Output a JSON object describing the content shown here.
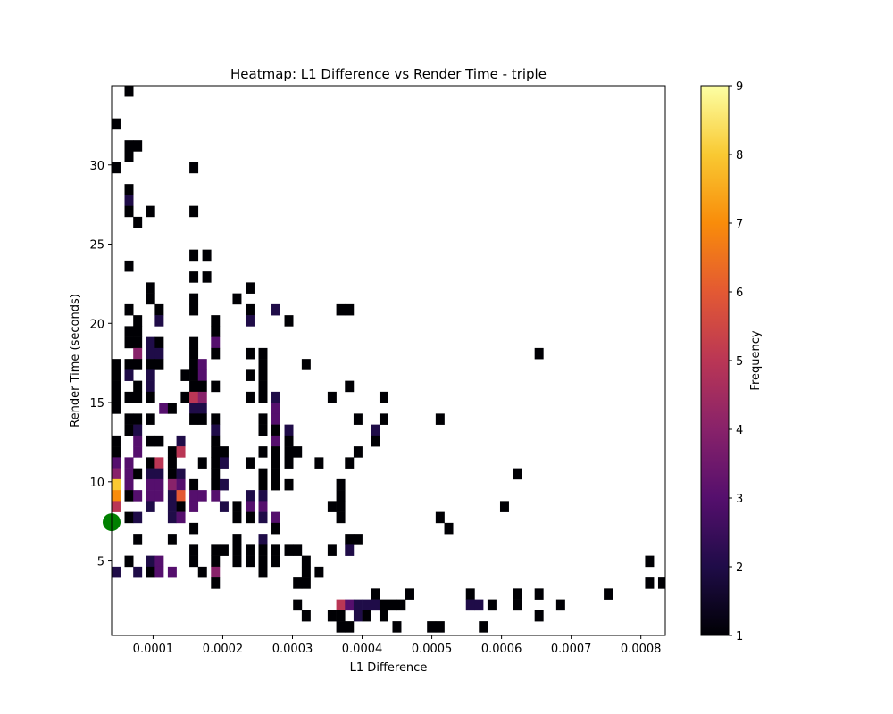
{
  "chart_data": {
    "type": "heatmap",
    "title": "Heatmap: L1 Difference vs Render Time - triple",
    "xlabel": "L1 Difference",
    "ylabel": "Render Time (seconds)",
    "colorbar_label": "Frequency",
    "colormap": "inferno",
    "xlim": [
      4.05e-05,
      0.000835
    ],
    "ylim": [
      0.3,
      35.0
    ],
    "x_bin_width": 1.24e-05,
    "y_bin_width": 0.69,
    "x_ticks": [
      0.0001,
      0.0002,
      0.0003,
      0.0004,
      0.0005,
      0.0006,
      0.0007,
      0.0008
    ],
    "x_tick_labels": [
      "0.0001",
      "0.0002",
      "0.0003",
      "0.0004",
      "0.0005",
      "0.0006",
      "0.0007",
      "0.0008"
    ],
    "y_ticks": [
      5,
      10,
      15,
      20,
      25,
      30
    ],
    "y_tick_labels": [
      "5",
      "10",
      "15",
      "20",
      "25",
      "30"
    ],
    "color_range": [
      1,
      9
    ],
    "colorbar_ticks": [
      1,
      2,
      3,
      4,
      5,
      6,
      7,
      8,
      9
    ],
    "colorbar_tick_labels": [
      "1",
      "2",
      "3",
      "4",
      "5",
      "6",
      "7",
      "8",
      "9"
    ],
    "grid": false,
    "cell_note": "each cell = [x_bin_center, y_bin_center, count]",
    "cells": [
      [
        6.53e-05,
        34.66,
        1
      ],
      [
        4.67e-05,
        32.59,
        1
      ],
      [
        6.53e-05,
        31.21,
        1
      ],
      [
        7.77e-05,
        31.21,
        1
      ],
      [
        6.53e-05,
        30.52,
        1
      ],
      [
        4.67e-05,
        29.83,
        1
      ],
      [
        0.0001583,
        29.83,
        1
      ],
      [
        6.53e-05,
        28.45,
        1
      ],
      [
        6.53e-05,
        27.76,
        2
      ],
      [
        6.53e-05,
        27.07,
        1
      ],
      [
        9.63e-05,
        27.07,
        1
      ],
      [
        0.0001583,
        27.07,
        1
      ],
      [
        7.77e-05,
        26.38,
        1
      ],
      [
        0.0001583,
        24.31,
        1
      ],
      [
        0.0001769,
        24.31,
        1
      ],
      [
        6.53e-05,
        23.62,
        1
      ],
      [
        0.0001583,
        22.93,
        1
      ],
      [
        0.0001769,
        22.93,
        1
      ],
      [
        9.63e-05,
        22.24,
        1
      ],
      [
        0.0002389,
        22.24,
        1
      ],
      [
        9.63e-05,
        21.55,
        1
      ],
      [
        0.0001583,
        21.55,
        1
      ],
      [
        0.0002203,
        21.55,
        1
      ],
      [
        6.53e-05,
        20.86,
        1
      ],
      [
        0.0001087,
        20.86,
        1
      ],
      [
        0.0001583,
        20.86,
        1
      ],
      [
        0.0002389,
        20.86,
        1
      ],
      [
        0.0002761,
        20.86,
        2
      ],
      [
        0.0003691,
        20.86,
        1
      ],
      [
        0.0003815,
        20.86,
        1
      ],
      [
        7.77e-05,
        20.17,
        1
      ],
      [
        0.0001087,
        20.17,
        2
      ],
      [
        0.0001893,
        20.17,
        1
      ],
      [
        0.0002389,
        20.17,
        2
      ],
      [
        0.0002947,
        20.17,
        1
      ],
      [
        6.53e-05,
        19.48,
        1
      ],
      [
        7.77e-05,
        19.48,
        1
      ],
      [
        0.0001893,
        19.48,
        1
      ],
      [
        6.53e-05,
        18.79,
        1
      ],
      [
        7.77e-05,
        18.79,
        1
      ],
      [
        9.63e-05,
        18.79,
        2
      ],
      [
        0.0001087,
        18.79,
        1
      ],
      [
        0.0001583,
        18.79,
        1
      ],
      [
        0.0001893,
        18.79,
        3
      ],
      [
        7.77e-05,
        18.1,
        4
      ],
      [
        9.63e-05,
        18.1,
        2
      ],
      [
        0.0001087,
        18.1,
        2
      ],
      [
        0.0001583,
        18.1,
        1
      ],
      [
        0.0001893,
        18.1,
        1
      ],
      [
        0.0002389,
        18.1,
        1
      ],
      [
        0.0002575,
        18.1,
        1
      ],
      [
        0.0006537,
        18.1,
        1
      ],
      [
        4.67e-05,
        17.41,
        1
      ],
      [
        6.53e-05,
        17.41,
        1
      ],
      [
        7.77e-05,
        17.41,
        1
      ],
      [
        9.63e-05,
        17.41,
        1
      ],
      [
        0.0001087,
        17.41,
        1
      ],
      [
        0.0001583,
        17.41,
        1
      ],
      [
        0.0001707,
        17.41,
        3
      ],
      [
        0.0002575,
        17.41,
        1
      ],
      [
        0.0003195,
        17.41,
        1
      ],
      [
        4.67e-05,
        16.72,
        1
      ],
      [
        6.53e-05,
        16.72,
        2
      ],
      [
        9.63e-05,
        16.72,
        2
      ],
      [
        0.0001459,
        16.72,
        1
      ],
      [
        0.0001583,
        16.72,
        1
      ],
      [
        0.0001707,
        16.72,
        3
      ],
      [
        0.0002389,
        16.72,
        1
      ],
      [
        0.0002575,
        16.72,
        1
      ],
      [
        4.67e-05,
        16.03,
        1
      ],
      [
        7.77e-05,
        16.03,
        1
      ],
      [
        9.63e-05,
        16.03,
        2
      ],
      [
        0.0001583,
        16.03,
        1
      ],
      [
        0.0001707,
        16.03,
        1
      ],
      [
        0.0001893,
        16.03,
        1
      ],
      [
        0.0002575,
        16.03,
        1
      ],
      [
        0.0003815,
        16.03,
        1
      ],
      [
        4.67e-05,
        15.34,
        1
      ],
      [
        6.53e-05,
        15.34,
        1
      ],
      [
        7.77e-05,
        15.34,
        1
      ],
      [
        9.63e-05,
        15.34,
        1
      ],
      [
        0.0001459,
        15.34,
        1
      ],
      [
        0.0001583,
        15.34,
        5
      ],
      [
        0.0001707,
        15.34,
        4
      ],
      [
        0.0002389,
        15.34,
        1
      ],
      [
        0.0002575,
        15.34,
        1
      ],
      [
        0.0002761,
        15.34,
        2
      ],
      [
        0.0003567,
        15.34,
        1
      ],
      [
        0.0004311,
        15.34,
        1
      ],
      [
        4.67e-05,
        14.65,
        1
      ],
      [
        0.0001149,
        14.65,
        3
      ],
      [
        0.0001273,
        14.65,
        1
      ],
      [
        0.0001583,
        14.65,
        2
      ],
      [
        0.0001707,
        14.65,
        2
      ],
      [
        0.0002761,
        14.65,
        3
      ],
      [
        6.53e-05,
        13.96,
        1
      ],
      [
        7.77e-05,
        13.96,
        1
      ],
      [
        9.63e-05,
        13.96,
        1
      ],
      [
        0.0001583,
        13.96,
        1
      ],
      [
        0.0001707,
        13.96,
        1
      ],
      [
        0.0001893,
        13.96,
        1
      ],
      [
        0.0002575,
        13.96,
        1
      ],
      [
        0.0002761,
        13.96,
        3
      ],
      [
        0.0003939,
        13.96,
        1
      ],
      [
        0.0004311,
        13.96,
        1
      ],
      [
        0.0005117,
        13.96,
        1
      ],
      [
        6.53e-05,
        13.27,
        1
      ],
      [
        7.77e-05,
        13.27,
        2
      ],
      [
        0.0001893,
        13.27,
        2
      ],
      [
        0.0002575,
        13.27,
        1
      ],
      [
        0.0002761,
        13.27,
        1
      ],
      [
        0.0002947,
        13.27,
        2
      ],
      [
        0.0004187,
        13.27,
        2
      ],
      [
        4.67e-05,
        12.58,
        1
      ],
      [
        7.77e-05,
        12.58,
        3
      ],
      [
        9.63e-05,
        12.58,
        1
      ],
      [
        0.0001087,
        12.58,
        1
      ],
      [
        0.0001397,
        12.58,
        2
      ],
      [
        0.0001893,
        12.58,
        1
      ],
      [
        0.0002761,
        12.58,
        3
      ],
      [
        0.0002947,
        12.58,
        1
      ],
      [
        0.0004187,
        12.58,
        1
      ],
      [
        4.67e-05,
        11.89,
        1
      ],
      [
        7.77e-05,
        11.89,
        3
      ],
      [
        0.0001273,
        11.89,
        1
      ],
      [
        0.0001397,
        11.89,
        5
      ],
      [
        0.0001893,
        11.89,
        1
      ],
      [
        0.0002017,
        11.89,
        1
      ],
      [
        0.0002575,
        11.89,
        1
      ],
      [
        0.0002761,
        11.89,
        1
      ],
      [
        0.0002947,
        11.89,
        1
      ],
      [
        0.0003071,
        11.89,
        1
      ],
      [
        0.0003939,
        11.89,
        1
      ],
      [
        4.67e-05,
        11.2,
        3
      ],
      [
        6.53e-05,
        11.2,
        3
      ],
      [
        9.63e-05,
        11.2,
        1
      ],
      [
        0.0001087,
        11.2,
        5
      ],
      [
        0.0001273,
        11.2,
        1
      ],
      [
        0.0001707,
        11.2,
        1
      ],
      [
        0.0001893,
        11.2,
        1
      ],
      [
        0.0002017,
        11.2,
        2
      ],
      [
        0.0002389,
        11.2,
        1
      ],
      [
        0.0002761,
        11.2,
        1
      ],
      [
        0.0002947,
        11.2,
        1
      ],
      [
        0.0003381,
        11.2,
        1
      ],
      [
        0.0003815,
        11.2,
        1
      ],
      [
        4.67e-05,
        10.51,
        4
      ],
      [
        6.53e-05,
        10.51,
        3
      ],
      [
        7.77e-05,
        10.51,
        1
      ],
      [
        9.63e-05,
        10.51,
        2
      ],
      [
        0.0001087,
        10.51,
        2
      ],
      [
        0.0001273,
        10.51,
        1
      ],
      [
        0.0001397,
        10.51,
        2
      ],
      [
        0.0001893,
        10.51,
        1
      ],
      [
        0.0002575,
        10.51,
        1
      ],
      [
        0.0002761,
        10.51,
        1
      ],
      [
        0.0006227,
        10.51,
        1
      ],
      [
        4.67e-05,
        9.82,
        8
      ],
      [
        6.53e-05,
        9.82,
        3
      ],
      [
        9.63e-05,
        9.82,
        3
      ],
      [
        0.0001087,
        9.82,
        3
      ],
      [
        0.0001273,
        9.82,
        4
      ],
      [
        0.0001397,
        9.82,
        3
      ],
      [
        0.0001583,
        9.82,
        1
      ],
      [
        0.0001893,
        9.82,
        1
      ],
      [
        0.0002017,
        9.82,
        2
      ],
      [
        0.0002575,
        9.82,
        1
      ],
      [
        0.0002761,
        9.82,
        1
      ],
      [
        0.0002947,
        9.82,
        1
      ],
      [
        0.0003691,
        9.82,
        1
      ],
      [
        4.67e-05,
        9.13,
        7
      ],
      [
        6.53e-05,
        9.13,
        1
      ],
      [
        7.77e-05,
        9.13,
        3
      ],
      [
        9.63e-05,
        9.13,
        3
      ],
      [
        0.0001087,
        9.13,
        3
      ],
      [
        0.0001273,
        9.13,
        2
      ],
      [
        0.0001397,
        9.13,
        6
      ],
      [
        0.0001583,
        9.13,
        3
      ],
      [
        0.0001707,
        9.13,
        3
      ],
      [
        0.0001893,
        9.13,
        3
      ],
      [
        0.0002389,
        9.13,
        2
      ],
      [
        0.0002575,
        9.13,
        2
      ],
      [
        0.0003691,
        9.13,
        1
      ],
      [
        4.67e-05,
        8.44,
        5
      ],
      [
        9.63e-05,
        8.44,
        2
      ],
      [
        0.0001273,
        8.44,
        2
      ],
      [
        0.0001397,
        8.44,
        1
      ],
      [
        0.0001583,
        8.44,
        3
      ],
      [
        0.0002017,
        8.44,
        2
      ],
      [
        0.0002203,
        8.44,
        1
      ],
      [
        0.0002389,
        8.44,
        3
      ],
      [
        0.0002575,
        8.44,
        3
      ],
      [
        0.0003567,
        8.44,
        1
      ],
      [
        0.0003691,
        8.44,
        1
      ],
      [
        0.0006041,
        8.44,
        1
      ],
      [
        6.53e-05,
        7.75,
        1
      ],
      [
        7.77e-05,
        7.75,
        2
      ],
      [
        0.0001273,
        7.75,
        2
      ],
      [
        0.0001397,
        7.75,
        3
      ],
      [
        0.0002203,
        7.75,
        1
      ],
      [
        0.0002389,
        7.75,
        1
      ],
      [
        0.0002575,
        7.75,
        2
      ],
      [
        0.0002761,
        7.75,
        3
      ],
      [
        0.0003691,
        7.75,
        1
      ],
      [
        0.0005117,
        7.75,
        1
      ],
      [
        0.0001583,
        7.06,
        1
      ],
      [
        0.0002761,
        7.06,
        1
      ],
      [
        0.0005241,
        7.06,
        1
      ],
      [
        7.77e-05,
        6.37,
        1
      ],
      [
        0.0001273,
        6.37,
        1
      ],
      [
        0.0002203,
        6.37,
        1
      ],
      [
        0.0002575,
        6.37,
        2
      ],
      [
        0.0003815,
        6.37,
        1
      ],
      [
        0.0003939,
        6.37,
        1
      ],
      [
        0.0001583,
        5.68,
        1
      ],
      [
        0.0001893,
        5.68,
        1
      ],
      [
        0.0002017,
        5.68,
        1
      ],
      [
        0.0002203,
        5.68,
        1
      ],
      [
        0.0002389,
        5.68,
        1
      ],
      [
        0.0002575,
        5.68,
        1
      ],
      [
        0.0002761,
        5.68,
        1
      ],
      [
        0.0002947,
        5.68,
        1
      ],
      [
        0.0003071,
        5.68,
        1
      ],
      [
        0.0003567,
        5.68,
        1
      ],
      [
        0.0003815,
        5.68,
        2
      ],
      [
        6.53e-05,
        4.99,
        1
      ],
      [
        9.63e-05,
        4.99,
        2
      ],
      [
        0.0001087,
        4.99,
        3
      ],
      [
        0.0001583,
        4.99,
        1
      ],
      [
        0.0001893,
        4.99,
        1
      ],
      [
        0.0002203,
        4.99,
        1
      ],
      [
        0.0002389,
        4.99,
        1
      ],
      [
        0.0002575,
        4.99,
        1
      ],
      [
        0.0002761,
        4.99,
        1
      ],
      [
        0.0003195,
        4.99,
        1
      ],
      [
        0.0008123,
        4.99,
        1
      ],
      [
        4.67e-05,
        4.3,
        2
      ],
      [
        7.77e-05,
        4.3,
        2
      ],
      [
        9.63e-05,
        4.3,
        1
      ],
      [
        0.0001087,
        4.3,
        3
      ],
      [
        0.0001273,
        4.3,
        3
      ],
      [
        0.0001707,
        4.3,
        1
      ],
      [
        0.0001893,
        4.3,
        4
      ],
      [
        0.0002575,
        4.3,
        1
      ],
      [
        0.0003195,
        4.3,
        1
      ],
      [
        0.0003381,
        4.3,
        1
      ],
      [
        0.0001893,
        3.61,
        1
      ],
      [
        0.0003071,
        3.61,
        1
      ],
      [
        0.0003195,
        3.61,
        1
      ],
      [
        0.0008123,
        3.61,
        1
      ],
      [
        0.0008309,
        3.61,
        1
      ],
      [
        0.0004187,
        2.92,
        1
      ],
      [
        0.0004683,
        2.92,
        1
      ],
      [
        0.0005551,
        2.92,
        1
      ],
      [
        0.0006227,
        2.92,
        1
      ],
      [
        0.0006537,
        2.92,
        1
      ],
      [
        0.0007529,
        2.92,
        1
      ],
      [
        0.0003071,
        2.23,
        1
      ],
      [
        0.0003691,
        2.23,
        5
      ],
      [
        0.0003815,
        2.23,
        3
      ],
      [
        0.0003939,
        2.23,
        2
      ],
      [
        0.0004063,
        2.23,
        2
      ],
      [
        0.0004187,
        2.23,
        2
      ],
      [
        0.0004311,
        2.23,
        1
      ],
      [
        0.0004435,
        2.23,
        1
      ],
      [
        0.0004559,
        2.23,
        1
      ],
      [
        0.0005551,
        2.23,
        2
      ],
      [
        0.0005675,
        2.23,
        2
      ],
      [
        0.0005861,
        2.23,
        1
      ],
      [
        0.0006227,
        2.23,
        1
      ],
      [
        0.0006847,
        2.23,
        1
      ],
      [
        0.0003195,
        1.54,
        1
      ],
      [
        0.0003567,
        1.54,
        1
      ],
      [
        0.0003691,
        1.54,
        1
      ],
      [
        0.0003939,
        1.54,
        2
      ],
      [
        0.0004063,
        1.54,
        1
      ],
      [
        0.0004311,
        1.54,
        1
      ],
      [
        0.0006537,
        1.54,
        1
      ],
      [
        0.0003691,
        0.85,
        1
      ],
      [
        0.0003815,
        0.85,
        1
      ],
      [
        0.0004497,
        0.85,
        1
      ],
      [
        0.0004993,
        0.85,
        1
      ],
      [
        0.0005117,
        0.85,
        1
      ],
      [
        0.0005737,
        0.85,
        1
      ]
    ],
    "marker": {
      "x": 4.05e-05,
      "y": 7.45,
      "color": "#008000",
      "shape": "circle"
    }
  }
}
